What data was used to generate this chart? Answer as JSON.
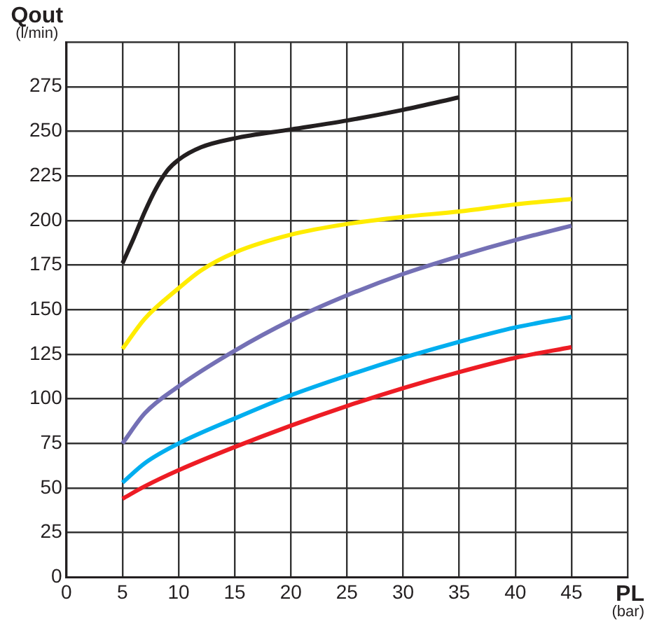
{
  "chart_data": {
    "type": "line",
    "xlabel": "PL (bar)",
    "ylabel": "Qout (l/min)",
    "xlim": [
      0,
      50
    ],
    "xticks": [
      0,
      5,
      10,
      15,
      20,
      25,
      30,
      35,
      40,
      45,
      {
        "value": 50,
        "label": null
      }
    ],
    "ylim": [
      0,
      300
    ],
    "yticks": [
      0,
      25,
      50,
      75,
      100,
      125,
      150,
      175,
      200,
      225,
      250,
      275,
      {
        "value": 300,
        "label": null
      }
    ],
    "grid": true,
    "legend": false,
    "marker": "none",
    "line_style": "solid",
    "series": [
      {
        "color": "#231f20",
        "x": [
          5,
          6,
          7,
          8,
          9,
          10,
          12,
          15,
          20,
          25,
          30,
          35
        ],
        "values": [
          176,
          190,
          205,
          218,
          228,
          234,
          241,
          246,
          251,
          256,
          262,
          269
        ]
      },
      {
        "color": "#ffec00",
        "x": [
          5,
          7,
          10,
          12,
          15,
          20,
          25,
          30,
          35,
          40,
          45
        ],
        "values": [
          128,
          145,
          162,
          172,
          182,
          192,
          198,
          202,
          205,
          209,
          212
        ]
      },
      {
        "color": "#7470b5",
        "x": [
          5,
          7,
          10,
          15,
          20,
          25,
          30,
          35,
          40,
          45
        ],
        "values": [
          75,
          92,
          107,
          127,
          144,
          158,
          170,
          180,
          189,
          197
        ]
      },
      {
        "color": "#00aeef",
        "x": [
          5,
          7,
          10,
          15,
          20,
          25,
          30,
          35,
          40,
          45
        ],
        "values": [
          53,
          64,
          75,
          89,
          102,
          113,
          123,
          132,
          140,
          146
        ]
      },
      {
        "color": "#ed1c24",
        "x": [
          5,
          7,
          10,
          15,
          20,
          25,
          30,
          35,
          40,
          45
        ],
        "values": [
          44,
          51,
          60,
          73,
          85,
          96,
          106,
          115,
          123,
          129
        ]
      }
    ]
  }
}
